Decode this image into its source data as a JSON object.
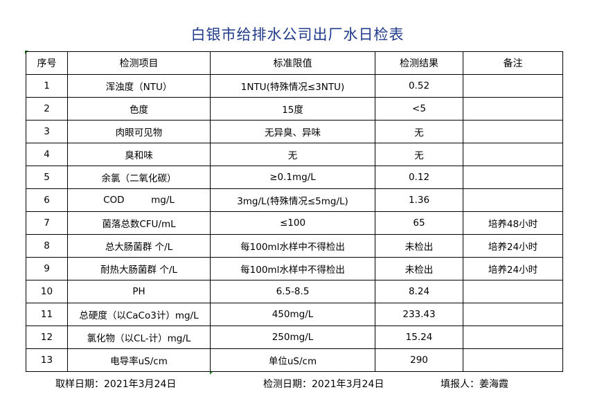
{
  "title": "白银市给排水公司出厂水日检表",
  "headers": [
    "序号",
    "检测项目",
    "标准限值",
    "检测结果",
    "备注"
  ],
  "rows": [
    [
      "1",
      "浑浊度（NTU）",
      "1NTU(特殊情况≤3NTU)",
      "0.52",
      ""
    ],
    [
      "2",
      "色度",
      "15度",
      "<5",
      ""
    ],
    [
      "3",
      "肉眼可见物",
      "无异臭、异味",
      "无",
      ""
    ],
    [
      "4",
      "臭和味",
      "无",
      "无",
      ""
    ],
    [
      "5",
      "余氯（二氧化碳）",
      "≥0.1mg/L",
      "0.12",
      ""
    ],
    [
      "6",
      "COD         mg/L",
      "3mg/L(特殊情况≤5mg/L)",
      "1.36",
      ""
    ],
    [
      "7",
      "菌落总数CFU/mL",
      "≤100",
      "65",
      "培养48小时"
    ],
    [
      "8",
      "总大肠菌群 个/L",
      "每100ml水样中不得检出",
      "未检出",
      "培养24小时"
    ],
    [
      "9",
      "耐热大肠菌群 个/L",
      "每100ml水样中不得检出",
      "未检出",
      "培养24小时"
    ],
    [
      "10",
      "PH",
      "6.5-8.5",
      "8.24",
      ""
    ],
    [
      "11",
      "总硬度（以CaCo3计）mg/L",
      "450mg/L",
      "233.43",
      ""
    ],
    [
      "12",
      "氯化物（以CL-计）mg/L",
      "250mg/L",
      "15.24",
      ""
    ],
    [
      "13",
      "电导率uS/cm",
      "单位uS/cm",
      "290",
      ""
    ]
  ],
  "footer": {
    "sampling_date": "取样日期：2021年3月24日",
    "test_date": "检测日期：2021年3月24日",
    "reporter": "填报人：姜海霞"
  }
}
